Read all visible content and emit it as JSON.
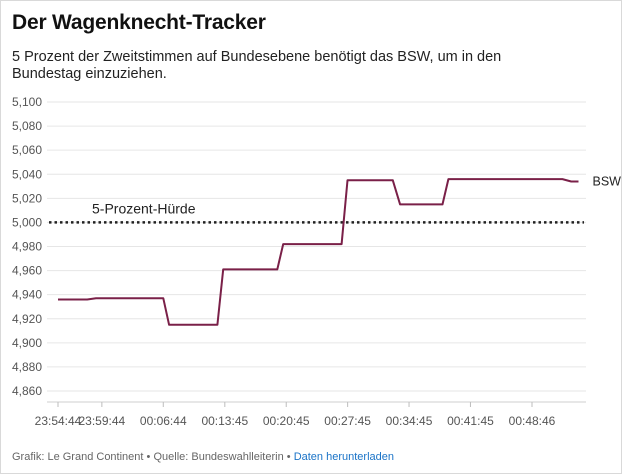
{
  "title": "Der Wagenknecht-Tracker",
  "subtitle": "5 Prozent der Zweitstimmen auf Bundesebene benötigt das BSW, um in den Bundestag einzuziehen.",
  "footer": {
    "credit": "Grafik: Le Grand Continent",
    "separator1": "•",
    "source": "Quelle: Bundeswahlleiterin",
    "separator2": "•",
    "download_link": "Daten herunterladen"
  },
  "colors": {
    "series": "#7a2048",
    "reference": "#222222",
    "grid": "#e6e6e6",
    "link": "#1a73c7"
  },
  "chart_data": {
    "type": "line",
    "ylim": [
      4.85,
      5.1
    ],
    "y_ticks": [
      "5,100",
      "5,080",
      "5,060",
      "5,040",
      "5,020",
      "5,000",
      "4,980",
      "4,960",
      "4,940",
      "4,920",
      "4,900",
      "4,880",
      "4,860"
    ],
    "y_tick_values": [
      5.1,
      5.08,
      5.06,
      5.04,
      5.02,
      5.0,
      4.98,
      4.96,
      4.94,
      4.92,
      4.9,
      4.88,
      4.86
    ],
    "x_ticks": [
      "23:54:44",
      "23:59:44",
      "00:06:44",
      "00:13:45",
      "00:20:45",
      "00:27:45",
      "00:34:45",
      "00:41:45",
      "00:48:46"
    ],
    "x_tick_values": [
      0,
      300,
      720,
      1141,
      1561,
      1981,
      2401,
      2821,
      3242
    ],
    "xlim": [
      0,
      3600
    ],
    "grid": "horizontal",
    "series": [
      {
        "name": "BSW",
        "x": [
          0,
          200,
          260,
          720,
          760,
          1090,
          1130,
          1500,
          1540,
          1940,
          1980,
          2290,
          2340,
          2630,
          2670,
          3100,
          3160,
          3450,
          3510,
          3560
        ],
        "values": [
          4.936,
          4.936,
          4.937,
          4.937,
          4.915,
          4.915,
          4.961,
          4.961,
          4.982,
          4.982,
          5.035,
          5.035,
          5.015,
          5.015,
          5.036,
          5.036,
          5.036,
          5.036,
          5.034,
          5.034
        ]
      }
    ],
    "reference_line": {
      "value": 5.0,
      "label": "5-Prozent-Hürde"
    }
  }
}
